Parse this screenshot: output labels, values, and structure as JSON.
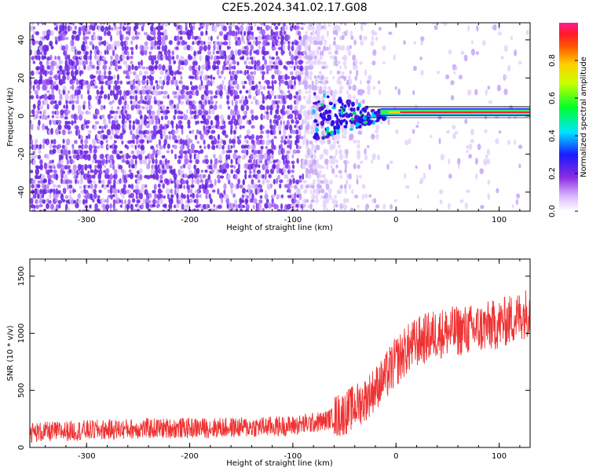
{
  "title": "C2E5.2024.341.02.17.G08",
  "colors": {
    "snr_line": "#f03232",
    "frame": "#000000",
    "spectrogram_noise": "#7a2cf0",
    "spectrogram_ridge": "#ff2b2b"
  },
  "chart_data": [
    {
      "type": "heatmap",
      "title": "C2E5.2024.341.02.17.G08",
      "xlabel": "Height of straight line (km)",
      "ylabel": "Frequency (Hz)",
      "xlim": [
        -355,
        130
      ],
      "ylim": [
        -50,
        49
      ],
      "x_ticks": [
        "-300",
        "-200",
        "-100",
        "0",
        "100"
      ],
      "y_ticks": [
        "-40",
        "-20",
        "0",
        "20",
        "40"
      ],
      "x_tick_values": [
        -300,
        -200,
        -100,
        0,
        100
      ],
      "y_tick_values": [
        -40,
        -20,
        0,
        20,
        40
      ],
      "colorbar": {
        "label": "Normalized spectral amplitude",
        "range": [
          0,
          1
        ],
        "ticks": [
          "0.0",
          "0.2",
          "0.4",
          "0.6",
          "0.8"
        ],
        "tick_values": [
          0.0,
          0.2,
          0.4,
          0.6,
          0.8
        ],
        "colormap": "rainbow (white-violet-blue-cyan-green-yellow-orange-red-pink)"
      },
      "features": {
        "noise_region_x": [
          -355,
          -90
        ],
        "noise_amplitude": 0.3,
        "transition_region_x": [
          -90,
          -15
        ],
        "signal_ridge_x": [
          -15,
          130
        ],
        "signal_ridge_frequency_hz": 2,
        "signal_ridge_amplitude": 0.9
      }
    },
    {
      "type": "line",
      "xlabel": "Height of straight line (km)",
      "ylabel": "SNR (10 * v/v)",
      "xlim": [
        -355,
        130
      ],
      "ylim": [
        0,
        1650
      ],
      "x_ticks": [
        "-300",
        "-200",
        "-100",
        "0",
        "100"
      ],
      "y_ticks": [
        "0",
        "500",
        "1000",
        "1500"
      ],
      "x_tick_values": [
        -300,
        -200,
        -100,
        0,
        100
      ],
      "y_tick_values": [
        0,
        500,
        1000,
        1500
      ],
      "series": [
        {
          "x": [
            -355,
            -300,
            -250,
            -200,
            -150,
            -100,
            -70,
            -50,
            -30,
            -20,
            -10,
            0,
            10,
            20,
            40,
            60,
            80,
            100,
            120,
            130
          ],
          "y": [
            130,
            150,
            165,
            170,
            175,
            190,
            230,
            300,
            420,
            520,
            620,
            750,
            850,
            920,
            1000,
            1020,
            1040,
            1080,
            1150,
            1200
          ]
        }
      ],
      "noise_spread": [
        -355,
        130,
        90,
        140
      ]
    }
  ]
}
